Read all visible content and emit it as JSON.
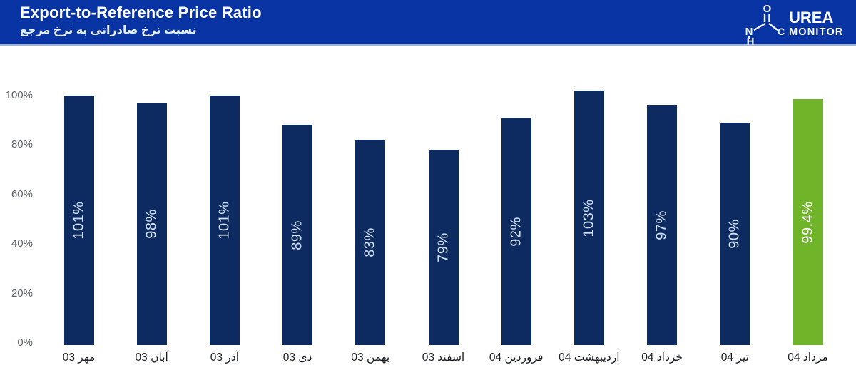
{
  "header": {
    "title": "Export-to-Reference Price Ratio",
    "subtitle_fa": "نسبت نرخ صادراتی به نرخ مرجع",
    "logo": {
      "brand_top": "UREA",
      "brand_bottom": "MONITOR",
      "atom_o": "O",
      "atom_n": "N",
      "atom_h": "H",
      "atom_c": "C"
    }
  },
  "colors": {
    "header_bg": "#0834a3",
    "bar_navy": "#0e2b61",
    "bar_green": "#70b42a",
    "bar_label_navy": "#cfe0f3",
    "bar_label_green": "#ffffff",
    "y_tick_text": "#5f636a",
    "x_label_text": "#1c1f24",
    "baseline": "#d7d9dd"
  },
  "chart_data": {
    "type": "bar",
    "title": "Export-to-Reference Price Ratio",
    "subtitle": "نسبت نرخ صادراتی به نرخ مرجع",
    "categories": [
      "مهر 03",
      "آبان 03",
      "آذر 03",
      "دی 03",
      "بهمن 03",
      "اسفند 03",
      "فروردین 04",
      "اردیبهشت 04",
      "خرداد 04",
      "تیر 04",
      "مرداد 04"
    ],
    "values": [
      101,
      98,
      101,
      89,
      83,
      79,
      92,
      103,
      97,
      90,
      99.4
    ],
    "bar_labels": [
      "101%",
      "98%",
      "101%",
      "89%",
      "83%",
      "79%",
      "92%",
      "103%",
      "97%",
      "90%",
      "99.4%"
    ],
    "highlight_index": 10,
    "y_ticks_values": [
      0,
      20,
      40,
      60,
      80,
      100
    ],
    "y_tick_labels": [
      "0%",
      "20%",
      "40%",
      "60%",
      "80%",
      "100%"
    ],
    "ylim": [
      0,
      103
    ],
    "grid": false,
    "legend": false,
    "bar_label_rotation_deg": -90
  }
}
